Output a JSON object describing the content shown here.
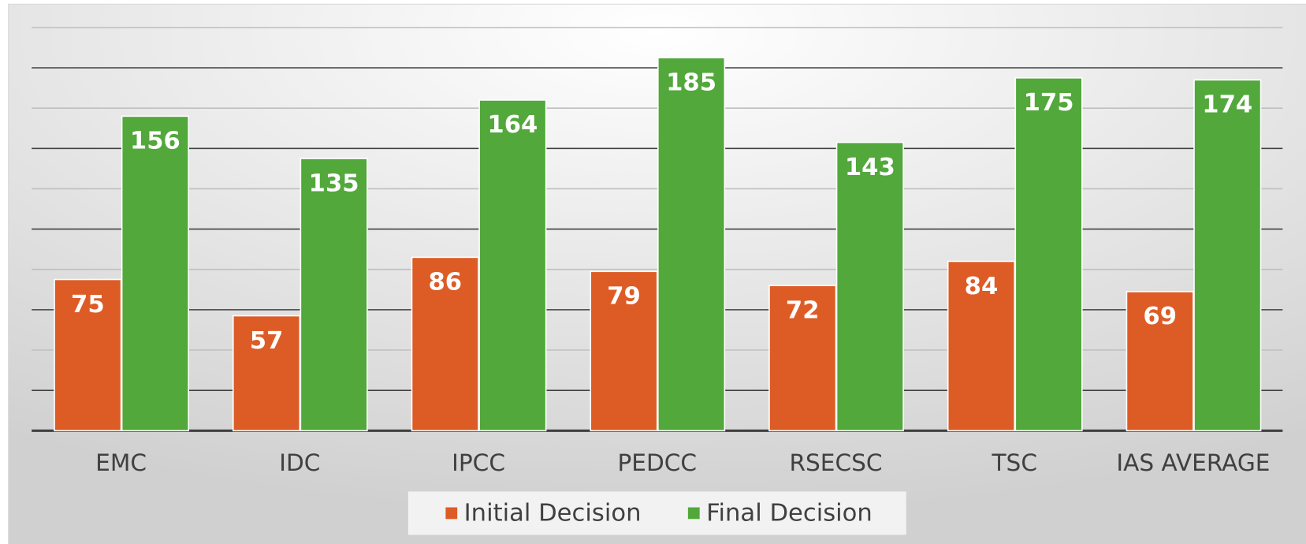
{
  "chart_data": {
    "type": "bar",
    "categories": [
      "EMC",
      "IDC",
      "IPCC",
      "PEDCC",
      "RSECSC",
      "TSC",
      "IAS AVERAGE"
    ],
    "series": [
      {
        "name": "Initial Decision",
        "color": "#dd5c26",
        "values": [
          75,
          57,
          86,
          79,
          72,
          84,
          69
        ]
      },
      {
        "name": "Final Decision",
        "color": "#52a83b",
        "values": [
          156,
          135,
          164,
          185,
          143,
          175,
          174
        ]
      }
    ],
    "ylim": [
      0,
      200
    ],
    "yticks": [
      0,
      20,
      40,
      60,
      80,
      100,
      120,
      140,
      160,
      180,
      200
    ],
    "grid": true,
    "legend": "bottom"
  }
}
